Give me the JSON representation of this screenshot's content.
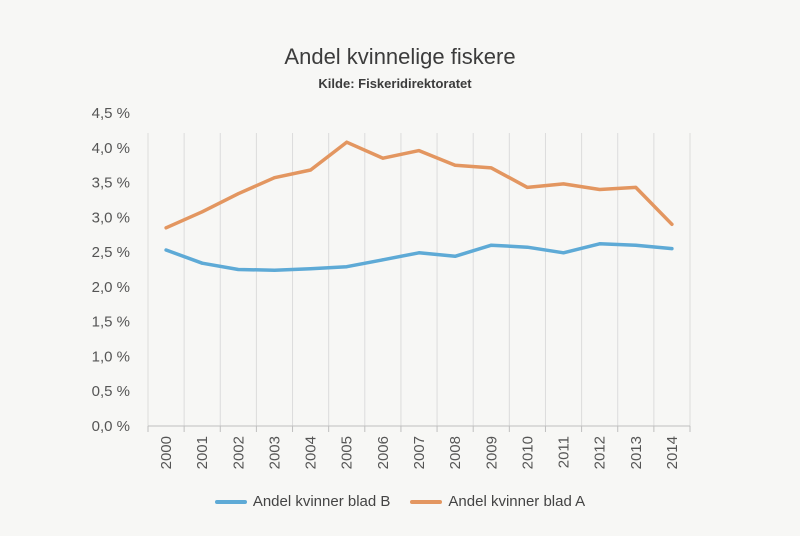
{
  "chart_data": {
    "type": "line",
    "title": "Andel kvinnelige fiskere",
    "subtitle": "Kilde: Fiskeridirektoratet",
    "x": [
      "2000",
      "2001",
      "2002",
      "2003",
      "2004",
      "2005",
      "2006",
      "2007",
      "2008",
      "2009",
      "2010",
      "2011",
      "2012",
      "2013",
      "2014"
    ],
    "y_ticks": [
      "0,0 %",
      "0,5 %",
      "1,0 %",
      "1,5 %",
      "2,0 %",
      "2,5 %",
      "3,0 %",
      "3,5 %",
      "4,0 %",
      "4,5 %"
    ],
    "ylim": [
      0,
      4.5
    ],
    "grid": "vertical",
    "legend_position": "bottom",
    "series": [
      {
        "name": "Andel kvinner blad B",
        "color": "#5eaad6",
        "values": [
          2.53,
          2.34,
          2.25,
          2.24,
          2.26,
          2.29,
          2.39,
          2.49,
          2.44,
          2.6,
          2.57,
          2.49,
          2.62,
          2.6,
          2.55
        ]
      },
      {
        "name": "Andel kvinner blad A",
        "color": "#e39660",
        "values": [
          2.85,
          3.08,
          3.34,
          3.57,
          3.68,
          4.08,
          3.85,
          3.96,
          3.75,
          3.71,
          3.43,
          3.48,
          3.4,
          3.43,
          2.9
        ]
      }
    ]
  }
}
